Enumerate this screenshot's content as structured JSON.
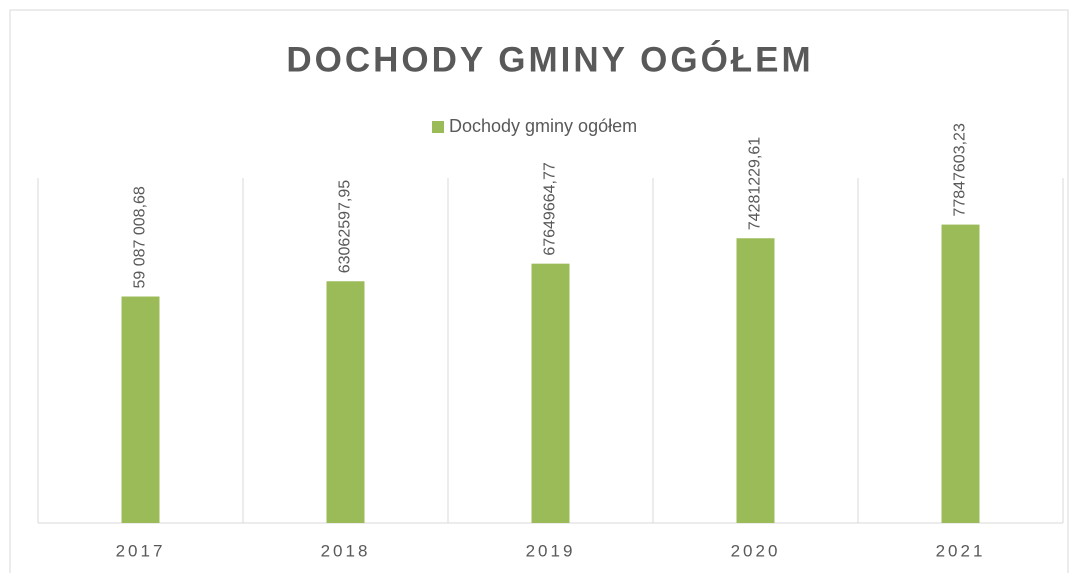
{
  "chart_data": {
    "type": "bar",
    "title": "DOCHODY GMINY OGÓŁEM",
    "categories": [
      "2017",
      "2018",
      "2019",
      "2020",
      "2021"
    ],
    "series": [
      {
        "name": "Dochody gminy ogółem",
        "color": "#9bbb59",
        "values": [
          59087008.68,
          63062597.95,
          67649664.77,
          74281229.61,
          77847603.23
        ],
        "value_labels": [
          "59 087 008,68",
          "63062597,95",
          "67649664,77",
          "74281229,61",
          "77847603,23"
        ]
      }
    ],
    "ylim": [
      0,
      90000000
    ],
    "legend": "top"
  }
}
